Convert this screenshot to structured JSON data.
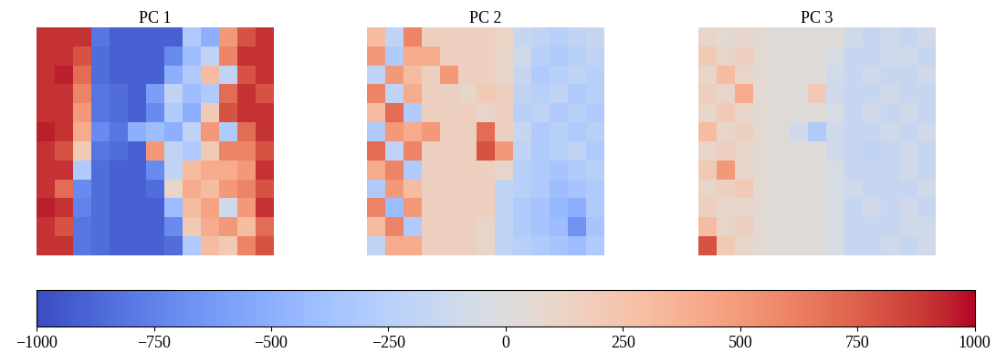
{
  "chart_data": [
    {
      "type": "heatmap",
      "title": "PC 1",
      "tick_labels": false,
      "cells": [
        [
          900,
          900,
          900,
          -800,
          -900,
          -900,
          -900,
          -900,
          -300,
          -500,
          500,
          800,
          900
        ],
        [
          900,
          900,
          800,
          -850,
          -900,
          -900,
          -900,
          -700,
          -400,
          -200,
          600,
          900,
          900
        ],
        [
          900,
          950,
          700,
          -850,
          -900,
          -900,
          -900,
          -500,
          -300,
          300,
          -200,
          800,
          900
        ],
        [
          900,
          900,
          600,
          -800,
          -850,
          -900,
          -600,
          -200,
          -400,
          -300,
          700,
          900,
          800
        ],
        [
          900,
          900,
          500,
          -800,
          -850,
          -900,
          -700,
          -300,
          -500,
          200,
          800,
          900,
          900
        ],
        [
          950,
          900,
          400,
          -700,
          -800,
          -500,
          -400,
          -500,
          -200,
          500,
          -300,
          700,
          900
        ],
        [
          900,
          800,
          200,
          -800,
          -850,
          -900,
          500,
          -200,
          -300,
          200,
          600,
          600,
          800
        ],
        [
          900,
          900,
          -300,
          -850,
          -900,
          -900,
          -700,
          -200,
          300,
          400,
          400,
          500,
          900
        ],
        [
          900,
          700,
          -700,
          -850,
          -900,
          -900,
          -850,
          100,
          400,
          300,
          500,
          600,
          800
        ],
        [
          950,
          900,
          -750,
          -850,
          -900,
          -900,
          -900,
          -400,
          300,
          450,
          -100,
          500,
          900
        ],
        [
          900,
          800,
          -800,
          -850,
          -900,
          -900,
          -900,
          -700,
          200,
          400,
          500,
          300,
          700
        ],
        [
          900,
          900,
          -800,
          -850,
          -900,
          -900,
          -900,
          -850,
          -300,
          300,
          200,
          600,
          800
        ]
      ]
    },
    {
      "type": "heatmap",
      "title": "PC 2",
      "tick_labels": false,
      "cells": [
        [
          300,
          -200,
          600,
          150,
          150,
          150,
          150,
          120,
          -150,
          -200,
          -250,
          -200,
          -150
        ],
        [
          500,
          -300,
          400,
          400,
          150,
          150,
          150,
          100,
          -100,
          -250,
          -300,
          -250,
          -200
        ],
        [
          -200,
          500,
          300,
          150,
          500,
          150,
          150,
          100,
          -150,
          -300,
          -250,
          -200,
          -250
        ],
        [
          600,
          -200,
          400,
          150,
          150,
          100,
          200,
          150,
          -200,
          -250,
          -200,
          -300,
          -250
        ],
        [
          300,
          700,
          -300,
          150,
          150,
          150,
          100,
          150,
          -250,
          -200,
          -300,
          -250,
          -300
        ],
        [
          -300,
          500,
          400,
          500,
          150,
          150,
          700,
          150,
          -150,
          -300,
          -250,
          -300,
          -250
        ],
        [
          700,
          -200,
          600,
          150,
          150,
          150,
          800,
          500,
          -200,
          -300,
          -250,
          -200,
          -300
        ],
        [
          400,
          600,
          -300,
          150,
          150,
          150,
          150,
          100,
          -250,
          -300,
          -350,
          -300,
          -250
        ],
        [
          -300,
          500,
          300,
          150,
          150,
          150,
          150,
          -200,
          -250,
          -300,
          -400,
          -350,
          -300
        ],
        [
          600,
          -400,
          500,
          150,
          150,
          150,
          150,
          -200,
          -300,
          -350,
          -450,
          -500,
          -300
        ],
        [
          300,
          600,
          -300,
          150,
          150,
          150,
          100,
          -200,
          -300,
          -350,
          -400,
          -650,
          -350
        ],
        [
          -200,
          400,
          400,
          150,
          150,
          150,
          100,
          -200,
          -250,
          -300,
          -350,
          -400,
          -300
        ]
      ]
    },
    {
      "type": "heatmap",
      "title": "PC 3",
      "tick_labels": false,
      "cells": [
        [
          100,
          50,
          80,
          50,
          30,
          20,
          20,
          30,
          -100,
          -150,
          -100,
          -150,
          -100
        ],
        [
          200,
          100,
          150,
          50,
          30,
          20,
          20,
          -50,
          -150,
          -150,
          -100,
          -100,
          -150
        ],
        [
          100,
          300,
          100,
          50,
          30,
          20,
          20,
          -80,
          -150,
          -100,
          -150,
          -150,
          -100
        ],
        [
          150,
          100,
          400,
          50,
          30,
          20,
          200,
          -100,
          -150,
          -150,
          -100,
          -150,
          -150
        ],
        [
          100,
          200,
          100,
          50,
          30,
          20,
          20,
          -50,
          -150,
          -100,
          -150,
          -100,
          -150
        ],
        [
          300,
          100,
          150,
          50,
          30,
          -100,
          -300,
          -100,
          -150,
          -150,
          -100,
          -150,
          -100
        ],
        [
          100,
          150,
          100,
          50,
          30,
          20,
          20,
          -100,
          -150,
          -200,
          -150,
          -100,
          -150
        ],
        [
          200,
          500,
          100,
          50,
          30,
          20,
          20,
          -50,
          -150,
          -150,
          -150,
          -100,
          -150
        ],
        [
          100,
          150,
          200,
          50,
          30,
          20,
          20,
          -50,
          -100,
          -150,
          -150,
          -150,
          -100
        ],
        [
          150,
          100,
          100,
          50,
          30,
          20,
          20,
          -50,
          -150,
          -100,
          -150,
          -100,
          -150
        ],
        [
          300,
          100,
          150,
          50,
          30,
          20,
          20,
          -50,
          -150,
          -150,
          -150,
          -100,
          -100
        ],
        [
          800,
          200,
          100,
          50,
          30,
          20,
          20,
          -50,
          -150,
          -150,
          -100,
          -150,
          -100
        ]
      ]
    }
  ],
  "colorbar": {
    "range": [
      -1000,
      1000
    ],
    "ticks": [
      {
        "value": -1000,
        "label": "−1000"
      },
      {
        "value": -750,
        "label": "−750"
      },
      {
        "value": -500,
        "label": "−500"
      },
      {
        "value": -250,
        "label": "−250"
      },
      0,
      250,
      500,
      750,
      1000
    ]
  }
}
